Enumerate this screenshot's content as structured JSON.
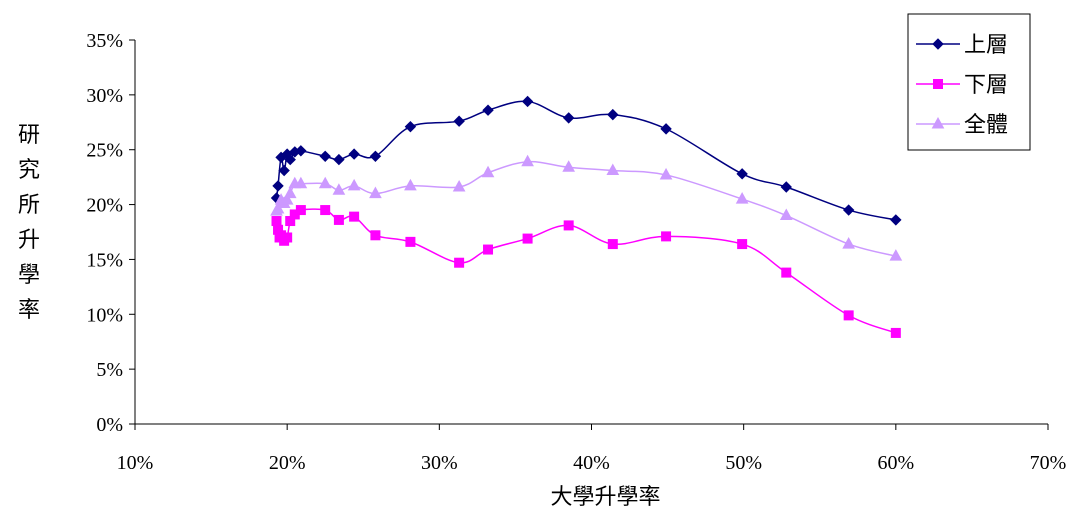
{
  "chart_data": {
    "type": "line",
    "title": "",
    "xlabel": "大學升學率",
    "ylabel": "研究所升學率",
    "xlim": [
      0.1,
      0.7
    ],
    "ylim": [
      0.0,
      0.35
    ],
    "x_ticks": [
      "10%",
      "20%",
      "30%",
      "40%",
      "50%",
      "60%",
      "70%"
    ],
    "y_ticks": [
      "0%",
      "5%",
      "10%",
      "15%",
      "20%",
      "25%",
      "30%",
      "35%"
    ],
    "grid": false,
    "legend_position": "top-right",
    "series": [
      {
        "name": "上層",
        "color": "#000080",
        "marker": "diamond",
        "x": [
          0.193,
          0.194,
          0.196,
          0.198,
          0.2,
          0.202,
          0.205,
          0.209,
          0.225,
          0.234,
          0.244,
          0.258,
          0.281,
          0.313,
          0.332,
          0.358,
          0.385,
          0.414,
          0.449,
          0.499,
          0.528,
          0.569,
          0.6
        ],
        "y": [
          0.206,
          0.217,
          0.243,
          0.231,
          0.246,
          0.241,
          0.248,
          0.249,
          0.244,
          0.241,
          0.246,
          0.244,
          0.271,
          0.276,
          0.286,
          0.294,
          0.279,
          0.282,
          0.269,
          0.228,
          0.216,
          0.195,
          0.186
        ]
      },
      {
        "name": "下層",
        "color": "#ff00ff",
        "marker": "square",
        "x": [
          0.193,
          0.194,
          0.195,
          0.196,
          0.198,
          0.2,
          0.202,
          0.205,
          0.209,
          0.225,
          0.234,
          0.244,
          0.258,
          0.281,
          0.313,
          0.332,
          0.358,
          0.385,
          0.414,
          0.449,
          0.499,
          0.528,
          0.569,
          0.6
        ],
        "y": [
          0.185,
          0.177,
          0.17,
          0.172,
          0.167,
          0.17,
          0.185,
          0.191,
          0.195,
          0.195,
          0.186,
          0.189,
          0.172,
          0.166,
          0.147,
          0.159,
          0.169,
          0.181,
          0.164,
          0.171,
          0.164,
          0.138,
          0.099,
          0.083
        ]
      },
      {
        "name": "全體",
        "color": "#cc99ff",
        "marker": "triangle",
        "x": [
          0.193,
          0.194,
          0.196,
          0.198,
          0.2,
          0.202,
          0.205,
          0.209,
          0.225,
          0.234,
          0.244,
          0.258,
          0.281,
          0.313,
          0.332,
          0.358,
          0.385,
          0.414,
          0.449,
          0.499,
          0.528,
          0.569,
          0.6
        ],
        "y": [
          0.194,
          0.196,
          0.204,
          0.201,
          0.204,
          0.21,
          0.219,
          0.219,
          0.219,
          0.213,
          0.217,
          0.21,
          0.217,
          0.216,
          0.229,
          0.239,
          0.234,
          0.231,
          0.227,
          0.205,
          0.19,
          0.164,
          0.153
        ]
      }
    ]
  }
}
